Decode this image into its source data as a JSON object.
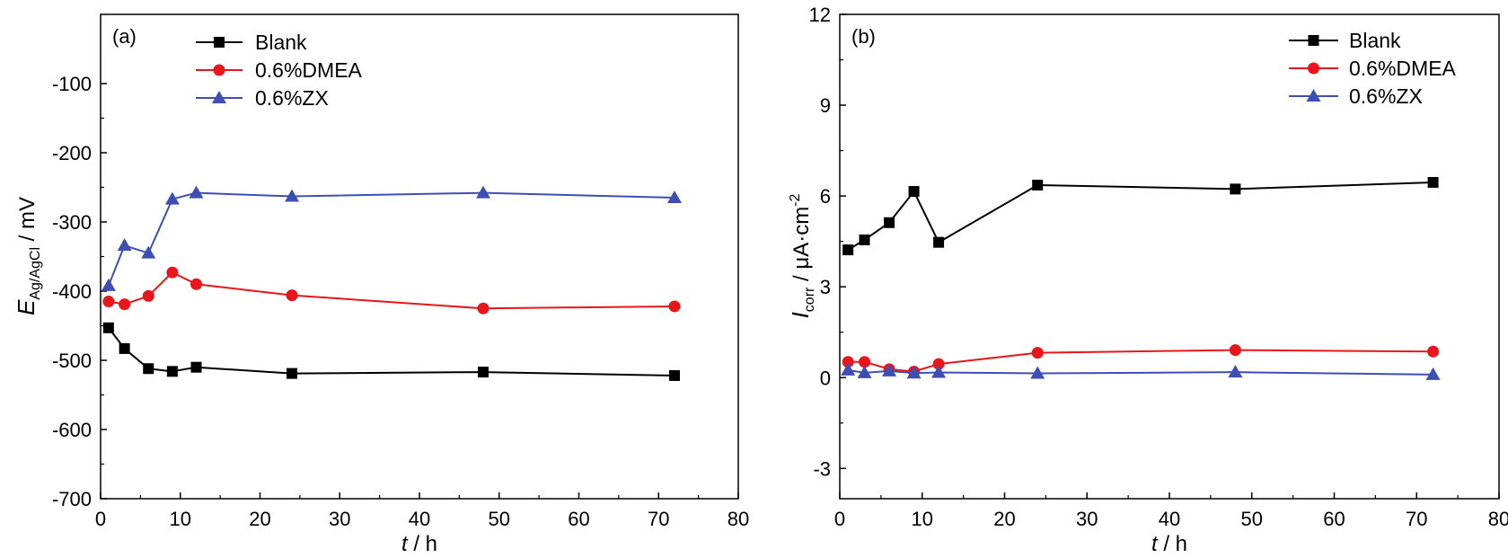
{
  "chart_data": [
    {
      "type": "line",
      "panel_label": "(a)",
      "xlabel": {
        "var": "t",
        "unit": " / h"
      },
      "ylabel": {
        "var": "E",
        "sub": "Ag/AgCl",
        "unit": " / mV"
      },
      "xlim": [
        0,
        80
      ],
      "ylim": [
        -700,
        0
      ],
      "xticks": [
        0,
        10,
        20,
        30,
        40,
        50,
        60,
        70,
        80
      ],
      "yticks": [
        -100,
        -200,
        -300,
        -400,
        -500,
        -600,
        -700
      ],
      "x": [
        1,
        3,
        6,
        9,
        12,
        24,
        48,
        72
      ],
      "legend_position": "top-left",
      "grid": false,
      "series": [
        {
          "name": "Blank",
          "color": "#000000",
          "marker": "square",
          "values": [
            -453,
            -483,
            -512,
            -516,
            -510,
            -519,
            -517,
            -522
          ]
        },
        {
          "name": "0.6%DMEA",
          "color": "#e8161b",
          "marker": "circle",
          "values": [
            -415,
            -419,
            -407,
            -373,
            -390,
            -406,
            -425,
            -422
          ]
        },
        {
          "name": "0.6%ZX",
          "color": "#3d4fb5",
          "marker": "triangle",
          "values": [
            -392,
            -334,
            -345,
            -267,
            -258,
            -263,
            -258,
            -265
          ]
        }
      ]
    },
    {
      "type": "line",
      "panel_label": "(b)",
      "xlabel": {
        "var": "t",
        "unit": " / h"
      },
      "ylabel": {
        "var": "I",
        "sub": "corr",
        "unit": " / μA·cm",
        "sup": "-2"
      },
      "xlim": [
        0,
        80
      ],
      "ylim": [
        -4,
        12
      ],
      "xticks": [
        0,
        10,
        20,
        30,
        40,
        50,
        60,
        70,
        80
      ],
      "yticks": [
        -3,
        0,
        3,
        6,
        9,
        12
      ],
      "x": [
        1,
        3,
        6,
        9,
        12,
        24,
        48,
        72
      ],
      "legend_position": "top-right",
      "grid": false,
      "series": [
        {
          "name": "Blank",
          "color": "#000000",
          "marker": "square",
          "values": [
            4.22,
            4.55,
            5.12,
            6.15,
            4.47,
            6.36,
            6.23,
            6.45
          ]
        },
        {
          "name": "0.6%DMEA",
          "color": "#e8161b",
          "marker": "circle",
          "values": [
            0.52,
            0.52,
            0.28,
            0.2,
            0.45,
            0.82,
            0.91,
            0.86
          ]
        },
        {
          "name": "0.6%ZX",
          "color": "#3d4fb5",
          "marker": "triangle",
          "values": [
            0.25,
            0.16,
            0.22,
            0.15,
            0.17,
            0.14,
            0.18,
            0.1
          ]
        }
      ]
    }
  ]
}
